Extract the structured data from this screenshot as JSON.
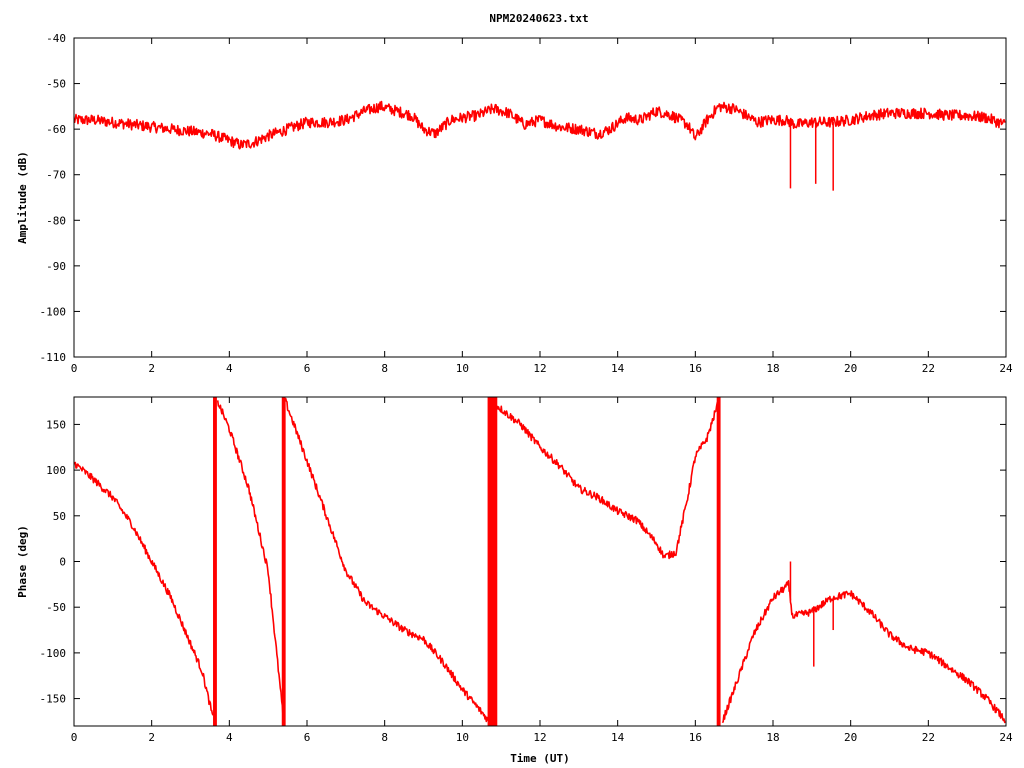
{
  "title": "NPM20240623.txt",
  "colors": {
    "trace": "#ff0000",
    "axes": "#000000",
    "background": "#ffffff"
  },
  "chart_data": [
    {
      "type": "line",
      "title": "NPM20240623.txt",
      "xlabel": "",
      "ylabel": "Amplitude (dB)",
      "xlim": [
        0,
        24
      ],
      "ylim": [
        -110,
        -40
      ],
      "xticks": [
        0,
        2,
        4,
        6,
        8,
        10,
        12,
        14,
        16,
        18,
        20,
        22,
        24
      ],
      "yticks": [
        -40,
        -50,
        -60,
        -70,
        -80,
        -90,
        -100,
        -110
      ],
      "xtick_labels": [
        "0",
        "2",
        "4",
        "6",
        "8",
        "10",
        "12",
        "14",
        "16",
        "18",
        "20",
        "22",
        "24"
      ],
      "ytick_labels": [
        "-40",
        "-50",
        "-60",
        "-70",
        "-80",
        "-90",
        "-100",
        "-110"
      ],
      "grid": false,
      "noise_band": 1.2,
      "series": [
        {
          "x": [
            0,
            0.5,
            1,
            1.5,
            2,
            2.5,
            3,
            3.5,
            4,
            4.3,
            4.6,
            5,
            5.5,
            6,
            6.5,
            7,
            7.5,
            7.9,
            8.3,
            8.7,
            9,
            9.3,
            9.7,
            10,
            10.4,
            10.8,
            11.2,
            11.6,
            12,
            12.5,
            13,
            13.5,
            13.8,
            14.2,
            14.6,
            15,
            15.4,
            15.8,
            16,
            16.3,
            16.6,
            17,
            17.3,
            17.6,
            17.9,
            18.3,
            18.6,
            19,
            19.5,
            20,
            20.5,
            21,
            21.5,
            22,
            22.5,
            23,
            23.5,
            23.8,
            24
          ],
          "y": [
            -58,
            -58,
            -58.5,
            -59,
            -59.5,
            -60,
            -60.5,
            -61,
            -62.5,
            -63.5,
            -63,
            -61.5,
            -60,
            -58.5,
            -58.5,
            -58,
            -56,
            -55,
            -56,
            -57,
            -60,
            -61,
            -58,
            -57.5,
            -57,
            -55.5,
            -56.5,
            -59,
            -58,
            -59.5,
            -60,
            -61,
            -60,
            -57.5,
            -58,
            -56,
            -57,
            -59,
            -62,
            -58,
            -55,
            -55.5,
            -57,
            -58.5,
            -58,
            -58,
            -59,
            -58.5,
            -58.5,
            -58,
            -57,
            -56.5,
            -56.5,
            -56.5,
            -57,
            -57,
            -57.5,
            -58.5,
            -59
          ]
        }
      ],
      "spikes": [
        {
          "x": 18.45,
          "y": -73
        },
        {
          "x": 19.1,
          "y": -72
        },
        {
          "x": 19.55,
          "y": -73.5
        }
      ]
    },
    {
      "type": "line",
      "title": "",
      "xlabel": "Time (UT)",
      "ylabel": "Phase (deg)",
      "xlim": [
        0,
        24
      ],
      "ylim": [
        -180,
        180
      ],
      "xticks": [
        0,
        2,
        4,
        6,
        8,
        10,
        12,
        14,
        16,
        18,
        20,
        22,
        24
      ],
      "yticks": [
        150,
        100,
        50,
        0,
        -50,
        -100,
        -150
      ],
      "xtick_labels": [
        "0",
        "2",
        "4",
        "6",
        "8",
        "10",
        "12",
        "14",
        "16",
        "18",
        "20",
        "22",
        "24"
      ],
      "ytick_labels": [
        "150",
        "100",
        "50",
        "0",
        "-50",
        "-100",
        "-150"
      ],
      "grid": false,
      "noise_band": 4,
      "wrap_bands": [
        {
          "x0": 3.58,
          "x1": 3.68
        },
        {
          "x0": 5.35,
          "x1": 5.45
        },
        {
          "x0": 10.65,
          "x1": 10.9
        },
        {
          "x0": 16.55,
          "x1": 16.65
        }
      ],
      "series": [
        {
          "x": [
            0,
            0.5,
            1,
            1.5,
            2,
            2.5,
            3,
            3.3,
            3.6,
            3.7,
            4,
            4.5,
            5,
            5.4,
            5.45,
            6,
            6.5,
            7,
            7.5,
            8,
            8.5,
            9,
            9.5,
            10,
            10.5,
            10.75,
            10.9,
            11.5,
            12,
            12.5,
            13,
            13.5,
            14,
            14.5,
            15,
            15.2,
            15.5,
            15.8,
            16,
            16.3,
            16.6,
            16.7,
            17,
            17.5,
            18,
            18.4,
            18.5,
            19,
            19.5,
            20,
            20.5,
            21,
            21.5,
            22,
            22.5,
            23,
            23.5,
            24
          ],
          "y": [
            108,
            90,
            70,
            40,
            0,
            -40,
            -90,
            -120,
            -175,
            175,
            145,
            80,
            -10,
            -175,
            175,
            110,
            50,
            -10,
            -45,
            -60,
            -75,
            -85,
            -110,
            -140,
            -165,
            -178,
            170,
            150,
            125,
            105,
            80,
            70,
            55,
            45,
            20,
            5,
            10,
            70,
            115,
            135,
            175,
            -175,
            -140,
            -80,
            -40,
            -25,
            -60,
            -55,
            -40,
            -35,
            -55,
            -80,
            -95,
            -100,
            -115,
            -130,
            -150,
            -175
          ]
        }
      ],
      "spikes": [
        {
          "x": 18.45,
          "y": 0
        },
        {
          "x": 19.05,
          "y": -115
        },
        {
          "x": 19.55,
          "y": -75
        }
      ]
    }
  ]
}
